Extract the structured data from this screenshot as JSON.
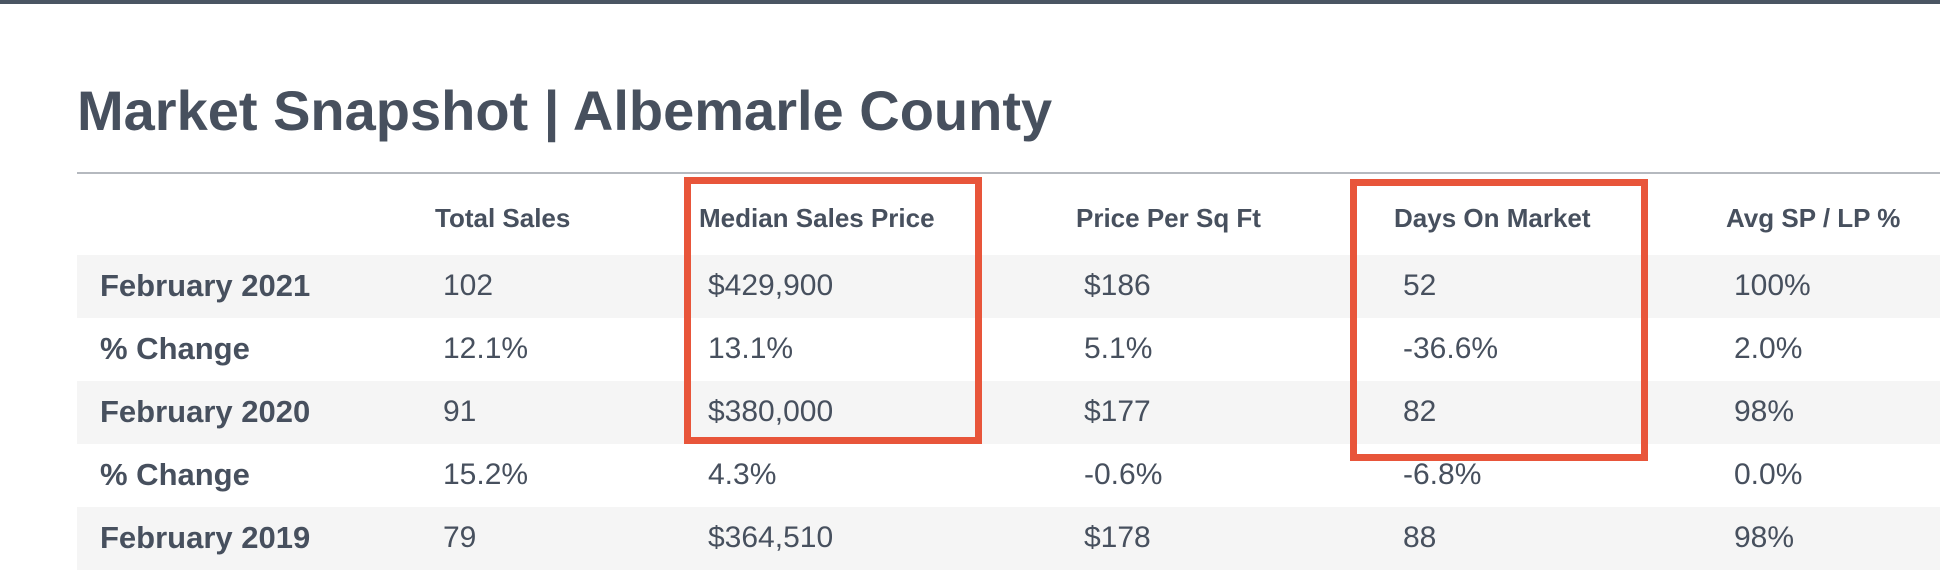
{
  "title": "Market Snapshot | Albemarle County",
  "table": {
    "columns": [
      "Total Sales",
      "Median Sales Price",
      "Price Per Sq Ft",
      "Days On Market",
      "Avg SP / LP %"
    ],
    "rows": [
      {
        "label": "February 2021",
        "cells": [
          "102",
          "$429,900",
          "$186",
          "52",
          "100%"
        ]
      },
      {
        "label": "% Change",
        "cells": [
          "12.1%",
          "13.1%",
          "5.1%",
          "-36.6%",
          "2.0%"
        ]
      },
      {
        "label": "February 2020",
        "cells": [
          "91",
          "$380,000",
          "$177",
          "82",
          "98%"
        ]
      },
      {
        "label": "% Change",
        "cells": [
          "15.2%",
          "4.3%",
          "-0.6%",
          "-6.8%",
          "0.0%"
        ]
      },
      {
        "label": "February 2019",
        "cells": [
          "79",
          "$364,510",
          "$178",
          "88",
          "98%"
        ]
      }
    ]
  }
}
